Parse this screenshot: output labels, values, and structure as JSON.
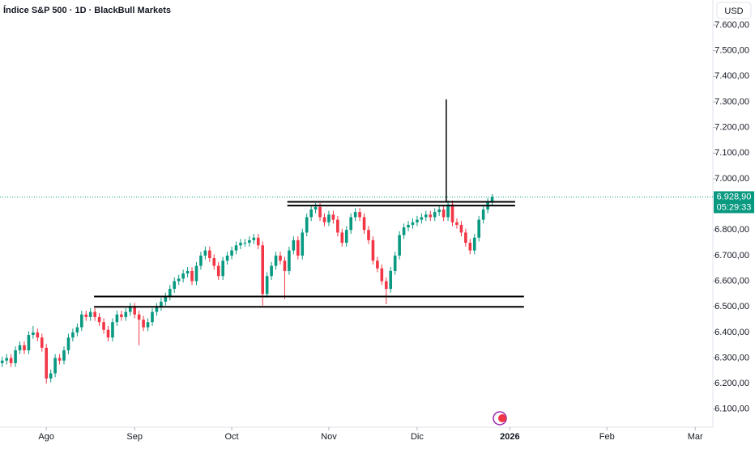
{
  "chart_data": {
    "type": "candlestick",
    "title": "Índice S&P 500 · 1D · BlackBull Markets",
    "currency": "USD",
    "up_color": "#089981",
    "down_color": "#f23645",
    "open": [
      6280,
      6290,
      6300,
      6280,
      6330,
      6350,
      6330,
      6390,
      6400,
      6380,
      6340,
      6220,
      6240,
      6300,
      6290,
      6330,
      6380,
      6400,
      6420,
      6470,
      6460,
      6480,
      6460,
      6440,
      6410,
      6380,
      6440,
      6470,
      6460,
      6480,
      6500,
      6470,
      6450,
      6420,
      6440,
      6480,
      6500,
      6520,
      6540,
      6570,
      6600,
      6610,
      6630,
      6640,
      6600,
      6660,
      6700,
      6720,
      6690,
      6660,
      6620,
      6680,
      6700,
      6720,
      6740,
      6750,
      6750,
      6760,
      6770,
      6740,
      6550,
      6620,
      6660,
      6700,
      6680,
      6640,
      6720,
      6760,
      6700,
      6790,
      6850,
      6880,
      6890,
      6850,
      6830,
      6860,
      6840,
      6790,
      6750,
      6800,
      6850,
      6870,
      6850,
      6800,
      6760,
      6680,
      6650,
      6600,
      6570,
      6640,
      6700,
      6780,
      6810,
      6820,
      6830,
      6840,
      6850,
      6860,
      6850,
      6870,
      6880,
      6850,
      6900,
      6830,
      6820,
      6790,
      6750,
      6720,
      6770,
      6840,
      6880,
      6910
    ],
    "high": [
      6305,
      6315,
      6315,
      6345,
      6365,
      6365,
      6405,
      6425,
      6415,
      6395,
      6355,
      6255,
      6315,
      6315,
      6345,
      6395,
      6415,
      6435,
      6485,
      6485,
      6495,
      6495,
      6475,
      6455,
      6425,
      6455,
      6485,
      6485,
      6495,
      6515,
      6515,
      6485,
      6465,
      6455,
      6495,
      6515,
      6535,
      6555,
      6585,
      6615,
      6625,
      6645,
      6655,
      6655,
      6675,
      6715,
      6735,
      6735,
      6705,
      6675,
      6695,
      6715,
      6735,
      6755,
      6765,
      6765,
      6775,
      6785,
      6785,
      6755,
      6635,
      6675,
      6715,
      6715,
      6695,
      6735,
      6775,
      6775,
      6805,
      6865,
      6895,
      6905,
      6905,
      6865,
      6875,
      6875,
      6855,
      6805,
      6815,
      6865,
      6885,
      6885,
      6865,
      6815,
      6775,
      6695,
      6665,
      6615,
      6655,
      6715,
      6795,
      6825,
      6835,
      6845,
      6855,
      6865,
      6875,
      6875,
      6885,
      6895,
      6895,
      6915,
      6915,
      6845,
      6835,
      6805,
      6765,
      6785,
      6855,
      6895,
      6925,
      6940
    ],
    "low": [
      6265,
      6275,
      6265,
      6265,
      6315,
      6315,
      6315,
      6375,
      6365,
      6325,
      6200,
      6205,
      6225,
      6275,
      6275,
      6315,
      6365,
      6385,
      6405,
      6445,
      6445,
      6445,
      6425,
      6395,
      6365,
      6365,
      6425,
      6445,
      6445,
      6465,
      6455,
      6350,
      6405,
      6405,
      6425,
      6465,
      6485,
      6505,
      6525,
      6555,
      6585,
      6595,
      6615,
      6585,
      6585,
      6645,
      6685,
      6675,
      6645,
      6605,
      6605,
      6665,
      6685,
      6705,
      6725,
      6735,
      6735,
      6745,
      6725,
      6505,
      6535,
      6605,
      6645,
      6665,
      6530,
      6625,
      6705,
      6685,
      6685,
      6775,
      6835,
      6865,
      6835,
      6815,
      6815,
      6825,
      6775,
      6735,
      6735,
      6785,
      6835,
      6835,
      6785,
      6745,
      6665,
      6635,
      6585,
      6510,
      6555,
      6625,
      6685,
      6765,
      6795,
      6805,
      6815,
      6825,
      6835,
      6835,
      6835,
      6855,
      6835,
      6835,
      6815,
      6805,
      6775,
      6735,
      6705,
      6705,
      6755,
      6825,
      6865,
      6895
    ],
    "close": [
      6290,
      6300,
      6280,
      6330,
      6350,
      6330,
      6390,
      6400,
      6380,
      6340,
      6220,
      6240,
      6300,
      6290,
      6330,
      6380,
      6400,
      6420,
      6470,
      6460,
      6480,
      6460,
      6440,
      6410,
      6380,
      6440,
      6470,
      6460,
      6480,
      6500,
      6470,
      6450,
      6420,
      6440,
      6480,
      6500,
      6520,
      6540,
      6570,
      6600,
      6610,
      6630,
      6640,
      6600,
      6660,
      6700,
      6720,
      6690,
      6660,
      6620,
      6680,
      6700,
      6720,
      6740,
      6750,
      6750,
      6760,
      6770,
      6740,
      6550,
      6620,
      6660,
      6700,
      6680,
      6640,
      6720,
      6760,
      6700,
      6790,
      6850,
      6880,
      6890,
      6850,
      6830,
      6860,
      6840,
      6790,
      6750,
      6800,
      6850,
      6870,
      6850,
      6800,
      6760,
      6680,
      6650,
      6600,
      6570,
      6640,
      6700,
      6780,
      6810,
      6820,
      6830,
      6840,
      6850,
      6860,
      6850,
      6870,
      6880,
      6850,
      6900,
      6830,
      6820,
      6790,
      6750,
      6720,
      6770,
      6840,
      6880,
      6910,
      6929
    ],
    "last_price": {
      "value": 6928.9,
      "label": "6.928,90"
    },
    "countdown": "05:29:33",
    "horizontal_lines": [
      {
        "price": 6910,
        "from": 64.6,
        "to": 116.2
      },
      {
        "price": 6895,
        "from": 64.6,
        "to": 116.2
      },
      {
        "price": 6540,
        "from": 20.8,
        "to": 118.2
      },
      {
        "price": 6500,
        "from": 20.8,
        "to": 118.2
      }
    ],
    "vertical_line": {
      "at": 100.6,
      "from": 6910,
      "to": 7310
    },
    "xlim": [
      -0.5,
      161
    ],
    "xticks": [
      {
        "value": 10,
        "label": "Ago"
      },
      {
        "value": 30,
        "label": "Sep"
      },
      {
        "value": 52,
        "label": "Oct"
      },
      {
        "value": 74,
        "label": "Nov"
      },
      {
        "value": 94,
        "label": "Dic"
      },
      {
        "value": 115,
        "label": "2026"
      },
      {
        "value": 137,
        "label": "Feb"
      },
      {
        "value": 157,
        "label": "Mar"
      }
    ],
    "ylim": [
      6030,
      7698
    ],
    "yticks": [
      {
        "value": 6100,
        "label": "6.100,00"
      },
      {
        "value": 6200,
        "label": "6.200,00"
      },
      {
        "value": 6300,
        "label": "6.300,00"
      },
      {
        "value": 6400,
        "label": "6.400,00"
      },
      {
        "value": 6500,
        "label": "6.500,00"
      },
      {
        "value": 6600,
        "label": "6.600,00"
      },
      {
        "value": 6700,
        "label": "6.700,00"
      },
      {
        "value": 6800,
        "label": "6.800,00"
      },
      {
        "value": 7000,
        "label": "7.000,00"
      },
      {
        "value": 7100,
        "label": "7.100,00"
      },
      {
        "value": 7200,
        "label": "7.200,00"
      },
      {
        "value": 7300,
        "label": "7.300,00"
      },
      {
        "value": 7400,
        "label": "7.400,00"
      },
      {
        "value": 7500,
        "label": "7.500,00"
      },
      {
        "value": 7600,
        "label": "7.600,00"
      }
    ]
  }
}
